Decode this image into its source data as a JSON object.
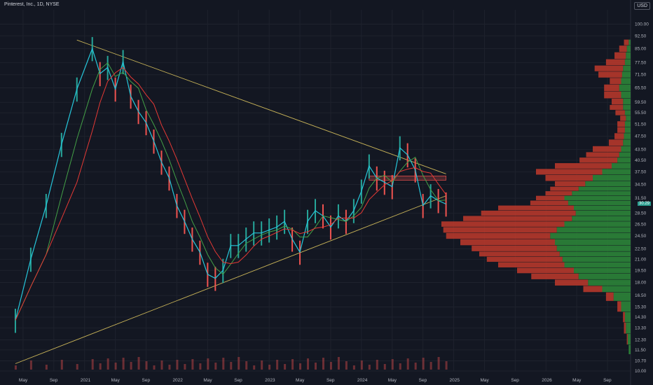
{
  "header": {
    "title": "Pinterest, Inc., 1D, NYSE",
    "currency": "USD"
  },
  "last_price": "30.29",
  "colors": {
    "background": "#131722",
    "grid": "#1e222d",
    "up": "#26a69a",
    "down": "#ef5350",
    "trendline": "#c9b458",
    "vp_up": "#2e8b3a",
    "vp_down": "#c0392b",
    "ma_red": "#e53935",
    "ma_green": "#43a047",
    "ma_teal": "#26c6da"
  },
  "chart_data": {
    "type": "line",
    "title": "Pinterest, Inc., 1D, NYSE",
    "xlabel": "",
    "ylabel": "USD",
    "scale": "log",
    "ylim": [
      10,
      110
    ],
    "x_tick_labels": [
      "May",
      "Sep",
      "2021",
      "May",
      "Sep",
      "2022",
      "May",
      "Sep",
      "2023",
      "May",
      "Sep",
      "2024",
      "May",
      "Sep",
      "2025",
      "May",
      "Sep",
      "2026",
      "May",
      "Sep"
    ],
    "y_tick_labels": [
      "100.00",
      "92.50",
      "85.00",
      "77.50",
      "71.50",
      "65.50",
      "59.50",
      "55.50",
      "51.50",
      "47.50",
      "43.50",
      "40.50",
      "37.50",
      "34.50",
      "31.50",
      "28.50",
      "26.50",
      "24.50",
      "22.50",
      "21.00",
      "19.50",
      "18.00",
      "16.50",
      "15.30",
      "14.30",
      "13.30",
      "12.30",
      "11.50",
      "10.70",
      "10.00"
    ],
    "price_series": {
      "name": "",
      "dates": [
        "2020-04",
        "2020-06",
        "2020-08",
        "2020-10",
        "2020-12",
        "2021-02",
        "2021-03",
        "2021-04",
        "2021-05",
        "2021-06",
        "2021-07",
        "2021-08",
        "2021-09",
        "2021-10",
        "2021-11",
        "2021-12",
        "2022-01",
        "2022-02",
        "2022-03",
        "2022-04",
        "2022-05",
        "2022-06",
        "2022-07",
        "2022-08",
        "2022-09",
        "2022-10",
        "2022-11",
        "2022-12",
        "2023-01",
        "2023-02",
        "2023-03",
        "2023-04",
        "2023-05",
        "2023-06",
        "2023-07",
        "2023-08",
        "2023-09",
        "2023-10",
        "2023-11",
        "2023-12",
        "2024-01",
        "2024-02",
        "2024-03",
        "2024-04",
        "2024-05",
        "2024-06",
        "2024-07",
        "2024-08",
        "2024-09",
        "2024-10",
        "2024-11",
        "2024-12"
      ],
      "close": [
        14,
        21,
        30,
        45,
        65,
        85,
        72,
        75,
        65,
        78,
        62,
        56,
        52,
        46,
        40,
        36,
        30,
        27,
        24,
        22,
        19,
        18.5,
        19.5,
        23,
        23,
        24,
        25,
        25,
        25.5,
        26,
        27,
        24,
        22,
        27,
        29,
        28,
        26,
        28,
        27,
        29,
        33,
        39,
        36,
        35,
        34,
        44,
        42,
        38,
        30,
        32,
        31,
        30.29
      ]
    },
    "trendlines": [
      {
        "name": "",
        "from": [
          "2020-12",
          90
        ],
        "to": [
          "2024-12",
          37
        ]
      },
      {
        "name": "",
        "from": [
          "2020-04",
          10.5
        ],
        "to": [
          "2024-12",
          32
        ]
      }
    ],
    "resistance_zone": {
      "from": "2024-02",
      "to": "2024-12",
      "low": 35.5,
      "high": 36.5
    },
    "volume_profile": {
      "price_levels": [
        11.5,
        12.3,
        13.3,
        14.3,
        15.3,
        16.5,
        17.2,
        18,
        18.7,
        19.5,
        20.2,
        21,
        21.7,
        22.5,
        23.5,
        24.5,
        25.5,
        26.5,
        27.5,
        28.5,
        29.5,
        30.5,
        31.5,
        32.5,
        33.5,
        34.5,
        36,
        37.5,
        39,
        40.5,
        42,
        43.5,
        45.5,
        47.5,
        49.5,
        51.5,
        53.5,
        55.5,
        57.5,
        59.5,
        62.5,
        65.5,
        68.5,
        71.5,
        74.5,
        77.5,
        81,
        85,
        88.5
      ],
      "up_volume": [
        2,
        3,
        5,
        6,
        10,
        18,
        30,
        45,
        55,
        60,
        70,
        72,
        75,
        78,
        80,
        85,
        78,
        70,
        62,
        58,
        60,
        66,
        70,
        62,
        55,
        48,
        40,
        30,
        20,
        14,
        12,
        10,
        8,
        7,
        6,
        6,
        5,
        6,
        8,
        8,
        10,
        12,
        10,
        9,
        8,
        6,
        5,
        4,
        2
      ],
      "down_volume": [
        0,
        1,
        2,
        2,
        4,
        8,
        20,
        35,
        50,
        60,
        70,
        80,
        85,
        90,
        100,
        110,
        120,
        130,
        115,
        100,
        80,
        40,
        30,
        28,
        30,
        32,
        50,
        70,
        60,
        40,
        35,
        30,
        15,
        10,
        8,
        8,
        6,
        10,
        14,
        12,
        18,
        16,
        12,
        25,
        30,
        20,
        12,
        8,
        5
      ]
    }
  }
}
